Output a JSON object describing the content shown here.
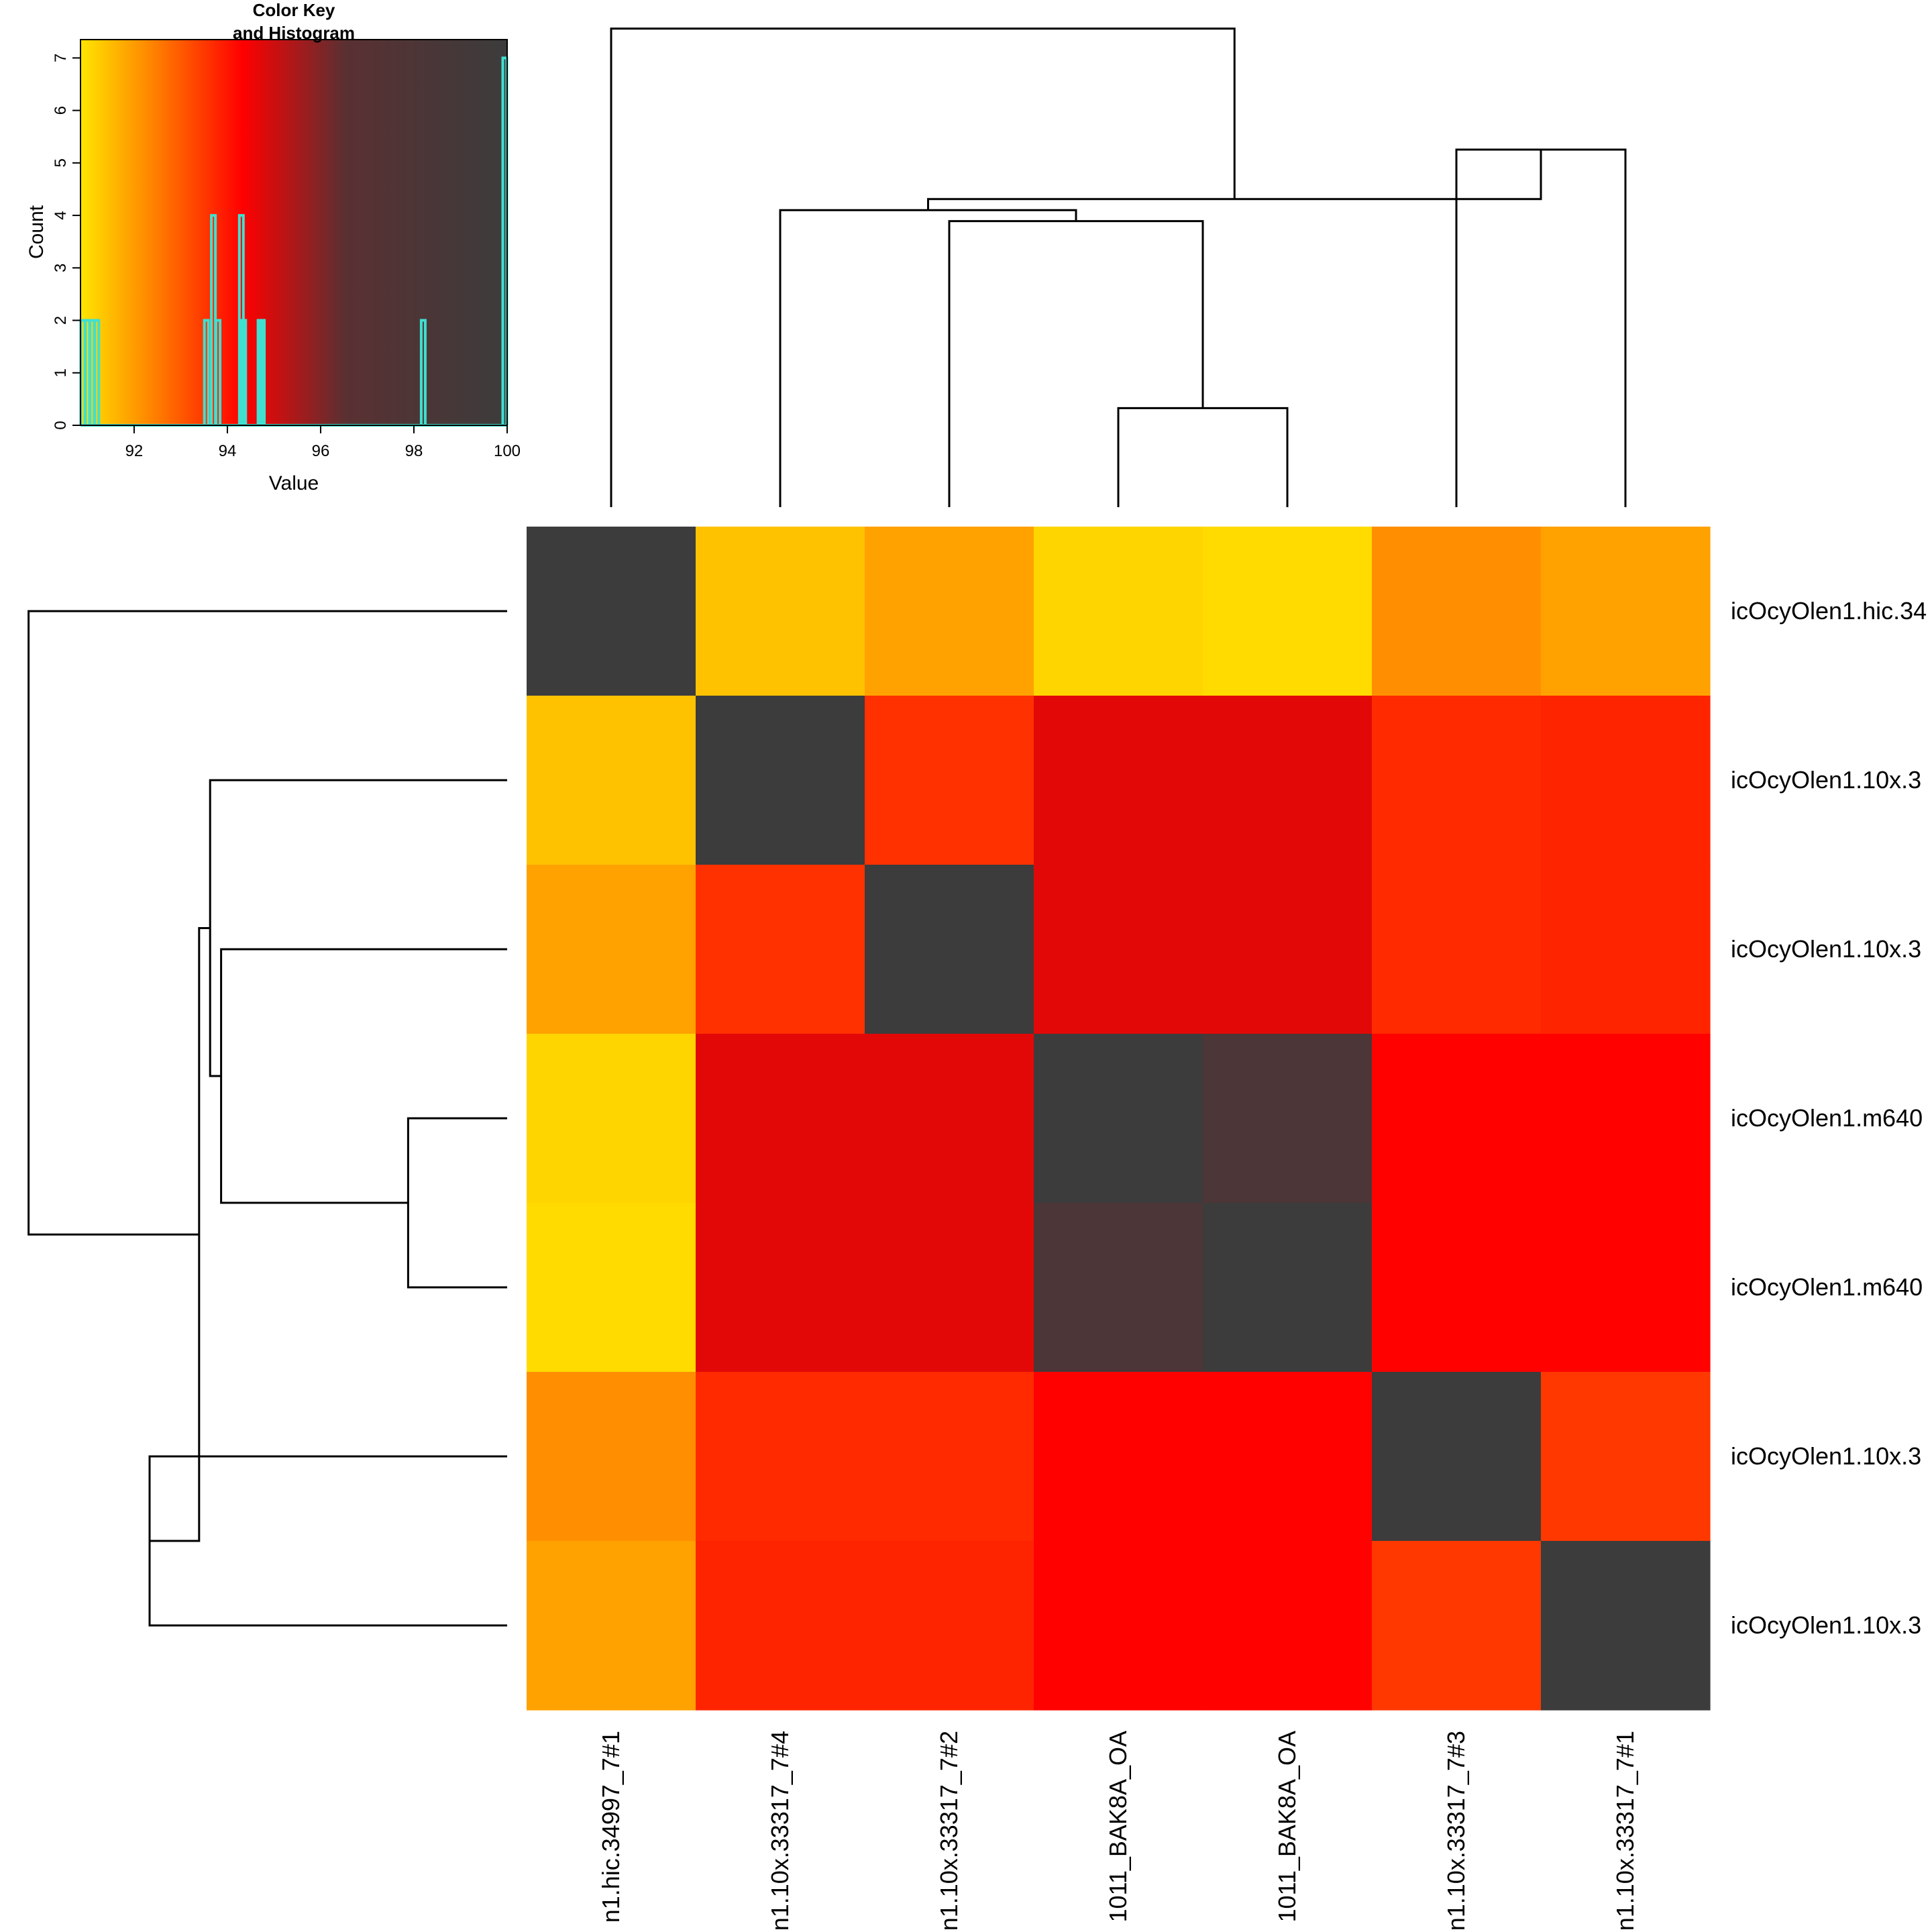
{
  "chart_data": [
    {
      "type": "heatmap",
      "row_labels": [
        "icOcyOlen1.hic.34",
        "icOcyOlen1.10x.3",
        "icOcyOlen1.10x.3",
        "icOcyOlen1.m640",
        "icOcyOlen1.m640",
        "icOcyOlen1.10x.3",
        "icOcyOlen1.10x.3"
      ],
      "col_labels": [
        "n1.hic.34997_7#1",
        "n1.10x.33317_7#4",
        "n1.10x.33317_7#2",
        "1011_BAK8A_OA",
        "1011_BAK8A_OA",
        "n1.10x.33317_7#3",
        "n1.10x.33317_7#1"
      ],
      "values": [
        [
          100,
          91.4,
          91.9,
          91.1,
          91.0,
          92.2,
          91.9
        ],
        [
          91.4,
          100,
          93.6,
          94.7,
          94.7,
          93.7,
          93.8
        ],
        [
          91.9,
          93.6,
          100,
          94.7,
          94.7,
          93.7,
          93.8
        ],
        [
          91.1,
          94.7,
          94.7,
          100,
          98.2,
          94.3,
          94.3
        ],
        [
          91.0,
          94.7,
          94.7,
          98.2,
          100,
          94.3,
          94.3
        ],
        [
          92.2,
          93.7,
          93.7,
          94.3,
          94.3,
          100,
          93.5
        ],
        [
          91.9,
          93.8,
          93.8,
          94.3,
          94.3,
          93.5,
          100
        ]
      ],
      "value_range": [
        90.85,
        100
      ],
      "color_scale": [
        "#ffe500",
        "#ff8800",
        "#ff0000",
        "#5a3032",
        "#3c3c3c"
      ],
      "dendrogram": {
        "merges": [
          {
            "a": 3,
            "b": 4,
            "height": 1.8
          },
          {
            "a": 2,
            "b": "m1",
            "height": 5.2
          },
          {
            "a": 1,
            "b": "m2",
            "height": 5.4
          },
          {
            "a": 5,
            "b": 6,
            "height": 6.5
          },
          {
            "a": "m3",
            "b": "m4",
            "height": 5.6
          },
          {
            "a": 0,
            "b": "m5",
            "height": 8.7
          }
        ]
      }
    },
    {
      "type": "histogram",
      "title": "Color Key",
      "subtitle": "and Histogram",
      "xlabel": "Value",
      "ylabel": "Count",
      "xlim": [
        90.85,
        100
      ],
      "ylim": [
        0,
        7.35
      ],
      "xticks": [
        "92",
        "94",
        "96",
        "98",
        "100"
      ],
      "yticks": [
        "0",
        "1",
        "2",
        "3",
        "4",
        "5",
        "6",
        "7"
      ],
      "line_color": "#40e0d0",
      "bins": [
        {
          "x": 90.9,
          "count": 2
        },
        {
          "x": 91.0,
          "count": 2
        },
        {
          "x": 91.1,
          "count": 2
        },
        {
          "x": 91.2,
          "count": 2
        },
        {
          "x": 93.55,
          "count": 2
        },
        {
          "x": 93.7,
          "count": 4
        },
        {
          "x": 93.8,
          "count": 2
        },
        {
          "x": 94.3,
          "count": 4
        },
        {
          "x": 94.35,
          "count": 2
        },
        {
          "x": 94.7,
          "count": 2
        },
        {
          "x": 94.75,
          "count": 2
        },
        {
          "x": 98.2,
          "count": 2
        },
        {
          "x": 99.95,
          "count": 7
        }
      ]
    }
  ]
}
